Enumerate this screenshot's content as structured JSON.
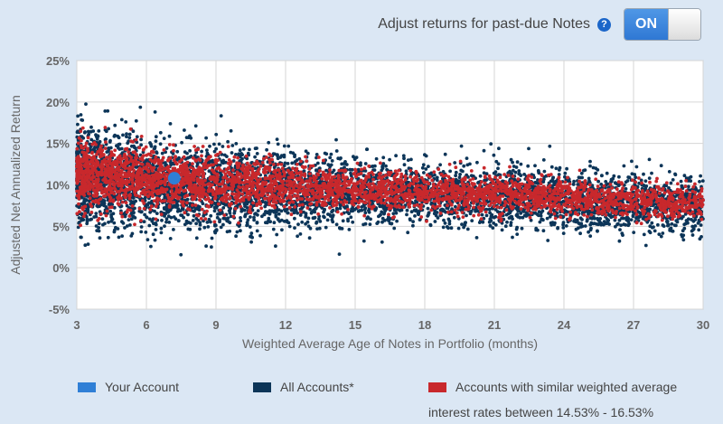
{
  "header": {
    "adjust_label": "Adjust returns for past-due Notes",
    "help_icon": "?",
    "toggle_label": "ON"
  },
  "colors": {
    "your_account": "#2f7fd6",
    "all_accounts": "#0c3558",
    "similar_accounts": "#c8282c",
    "plot_background": "#ffffff",
    "grid": "#d6d6d6"
  },
  "legend": {
    "your_account": "Your Account",
    "all_accounts": "All Accounts*",
    "similar_line1": "Accounts with similar weighted average",
    "similar_line2": "interest rates between 14.53% - 16.53%"
  },
  "chart_data": {
    "type": "scatter",
    "xlabel": "Weighted Average Age of Notes in Portfolio (months)",
    "ylabel": "Adjusted Net Annualized Return",
    "xlim": [
      3,
      30
    ],
    "ylim": [
      -5,
      25
    ],
    "x_ticks": [
      3,
      6,
      9,
      12,
      15,
      18,
      21,
      24,
      27,
      30
    ],
    "y_ticks": [
      "-5%",
      "0%",
      "5%",
      "10%",
      "15%",
      "20%",
      "25%"
    ],
    "y_tick_values": [
      -5,
      0,
      5,
      10,
      15,
      20,
      25
    ],
    "grid": true,
    "series": [
      {
        "name": "All Accounts*",
        "trend": [
          [
            3,
            11.0
          ],
          [
            9,
            9.5
          ],
          [
            15,
            9.0
          ],
          [
            21,
            8.5
          ],
          [
            30,
            7.5
          ]
        ],
        "spread": [
          [
            3,
            3.0
          ],
          [
            15,
            2.0
          ],
          [
            30,
            1.7
          ]
        ]
      },
      {
        "name": "Accounts with similar weighted average interest rates between 14.53% - 16.53%",
        "trend": [
          [
            3,
            11.2
          ],
          [
            9,
            10.2
          ],
          [
            15,
            9.5
          ],
          [
            21,
            8.9
          ],
          [
            30,
            7.8
          ]
        ],
        "spread": [
          [
            3,
            2.0
          ],
          [
            15,
            1.2
          ],
          [
            30,
            1.0
          ]
        ]
      },
      {
        "name": "Your Account",
        "points": [
          [
            7.2,
            10.8
          ]
        ]
      }
    ]
  }
}
